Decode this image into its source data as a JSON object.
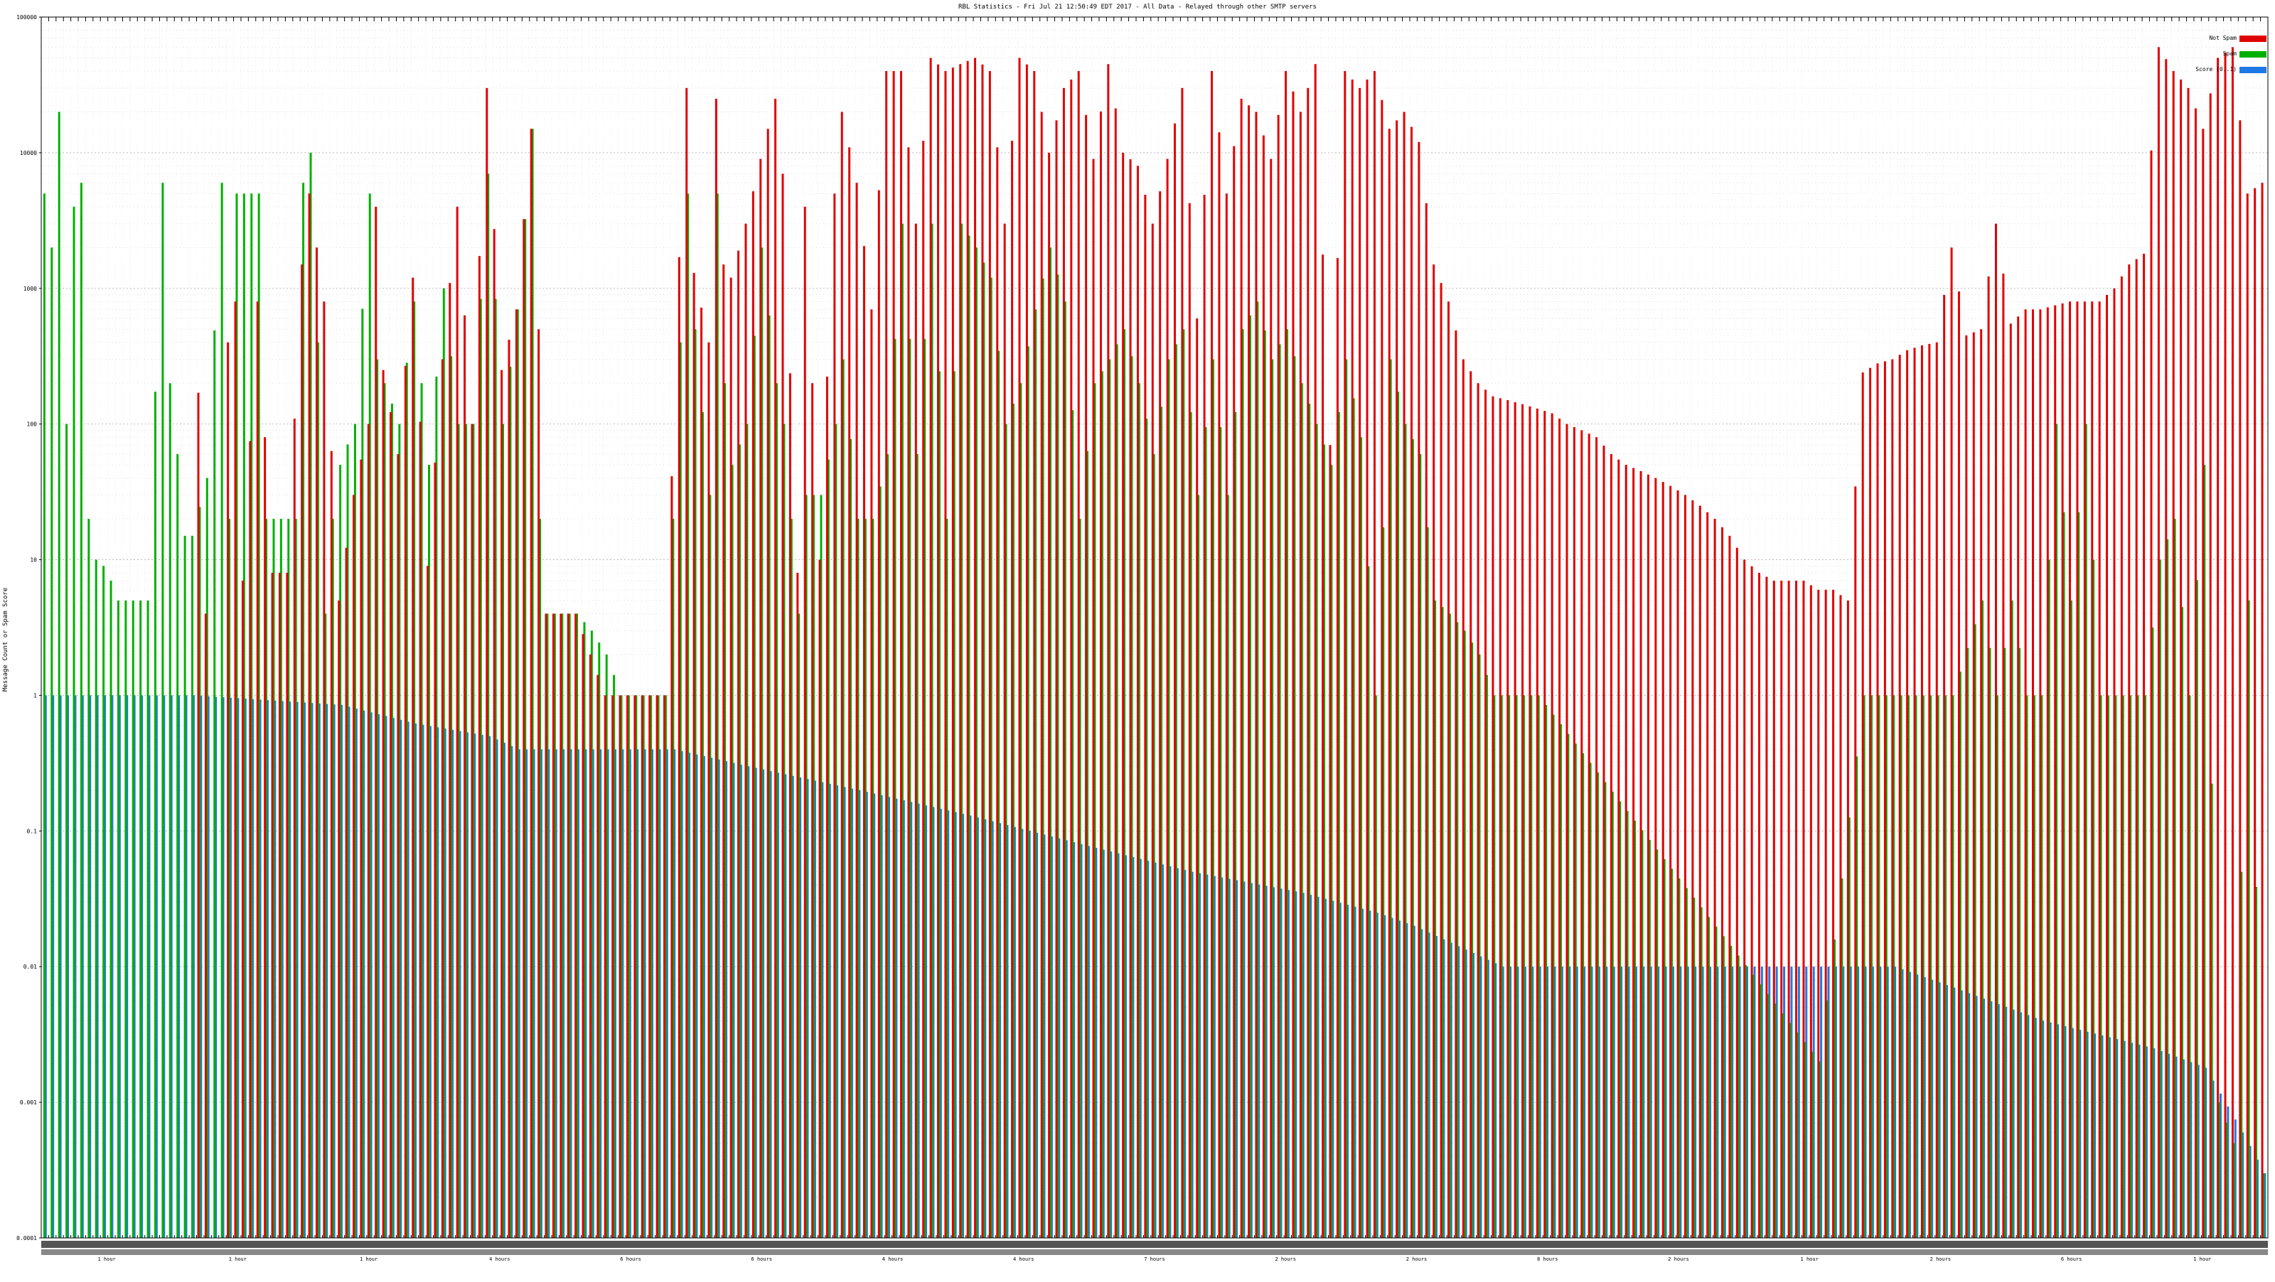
{
  "chart_data": {
    "type": "bar",
    "title": "RBL Statistics - Fri Jul 21 12:50:49 EDT 2017 - All Data - Relayed through other SMTP servers",
    "ylabel": "Message Count or Spam Score",
    "xlabel": "",
    "yscale": "log",
    "ylim": [
      0.0001,
      100000
    ],
    "y_tick_labels": [
      "0.0001",
      "0.001",
      "0.01",
      "0.1",
      "1",
      "10",
      "100",
      "1000",
      "10000",
      "100000"
    ],
    "grid": true,
    "legend_position": "top-right",
    "series": [
      {
        "name": "Not Spam",
        "color": "#e00000"
      },
      {
        "name": "Spam",
        "color": "#00b000"
      },
      {
        "name": "Score (0..1)",
        "color": "#1e78e6"
      }
    ],
    "x_group_labels": [
      "1 hour",
      "1 hour",
      "1 hour",
      "4 hours",
      "6 hours",
      "6 hours",
      "4 hours",
      "4 hours",
      "7 hours",
      "2 hours",
      "2 hours",
      "8 hours",
      "2 hours",
      "1 hour",
      "2 hours",
      "6 hours",
      "1 hour"
    ],
    "category_count": 301,
    "anchors": {
      "score": [
        [
          0,
          1
        ],
        [
          20,
          1
        ],
        [
          40,
          0.85
        ],
        [
          50,
          0.62
        ],
        [
          60,
          0.5
        ],
        [
          64,
          0.4
        ],
        [
          85,
          0.4
        ],
        [
          95,
          0.3
        ],
        [
          110,
          0.2
        ],
        [
          125,
          0.13
        ],
        [
          140,
          0.08
        ],
        [
          155,
          0.05
        ],
        [
          170,
          0.035
        ],
        [
          180,
          0.025
        ],
        [
          185,
          0.02
        ],
        [
          190,
          0.015
        ],
        [
          197,
          0.01
        ],
        [
          250,
          0.01
        ],
        [
          258,
          0.007
        ],
        [
          270,
          0.004
        ],
        [
          285,
          0.0025
        ],
        [
          292,
          0.0018
        ],
        [
          297,
          0.0006
        ],
        [
          300,
          0.0003
        ]
      ],
      "not_spam": [
        [
          0,
          null
        ],
        [
          20,
          null
        ],
        [
          21,
          170
        ],
        [
          22,
          4
        ],
        [
          23,
          null
        ],
        [
          24,
          null
        ],
        [
          25,
          400
        ],
        [
          26,
          800
        ],
        [
          27,
          7
        ],
        [
          29,
          800
        ],
        [
          31,
          8
        ],
        [
          33,
          8
        ],
        [
          35,
          1500
        ],
        [
          36,
          5000
        ],
        [
          38,
          800
        ],
        [
          40,
          5
        ],
        [
          42,
          30
        ],
        [
          44,
          100
        ],
        [
          45,
          4000
        ],
        [
          46,
          250
        ],
        [
          48,
          60
        ],
        [
          50,
          1200
        ],
        [
          52,
          9
        ],
        [
          54,
          300
        ],
        [
          56,
          4000
        ],
        [
          58,
          100
        ],
        [
          60,
          30000
        ],
        [
          62,
          250
        ],
        [
          64,
          700
        ],
        [
          66,
          15000
        ],
        [
          67,
          500
        ],
        [
          68,
          4
        ],
        [
          69,
          4
        ],
        [
          70,
          4
        ],
        [
          72,
          4
        ],
        [
          76,
          1
        ],
        [
          79,
          1
        ],
        [
          82,
          1
        ],
        [
          84,
          1
        ],
        [
          86,
          1700
        ],
        [
          87,
          30000
        ],
        [
          88,
          1300
        ],
        [
          90,
          400
        ],
        [
          91,
          25000
        ],
        [
          92,
          1500
        ],
        [
          93,
          1200
        ],
        [
          95,
          3000
        ],
        [
          97,
          9000
        ],
        [
          99,
          25000
        ],
        [
          100,
          7000
        ],
        [
          102,
          8
        ],
        [
          103,
          4000
        ],
        [
          105,
          10
        ],
        [
          107,
          5000
        ],
        [
          108,
          20000
        ],
        [
          110,
          6000
        ],
        [
          112,
          700
        ],
        [
          114,
          40000
        ],
        [
          116,
          40000
        ],
        [
          118,
          3000
        ],
        [
          120,
          50000
        ],
        [
          122,
          40000
        ],
        [
          124,
          45000
        ],
        [
          126,
          50000
        ],
        [
          128,
          40000
        ],
        [
          130,
          3000
        ],
        [
          132,
          50000
        ],
        [
          134,
          40000
        ],
        [
          136,
          10000
        ],
        [
          138,
          30000
        ],
        [
          140,
          40000
        ],
        [
          142,
          9000
        ],
        [
          144,
          45000
        ],
        [
          146,
          10000
        ],
        [
          148,
          8000
        ],
        [
          150,
          3000
        ],
        [
          152,
          9000
        ],
        [
          154,
          30000
        ],
        [
          156,
          600
        ],
        [
          158,
          40000
        ],
        [
          160,
          5000
        ],
        [
          162,
          25000
        ],
        [
          164,
          20000
        ],
        [
          166,
          9000
        ],
        [
          168,
          40000
        ],
        [
          170,
          20000
        ],
        [
          172,
          45000
        ],
        [
          174,
          70
        ],
        [
          176,
          40000
        ],
        [
          178,
          30000
        ],
        [
          180,
          40000
        ],
        [
          182,
          15000
        ],
        [
          184,
          20000
        ],
        [
          186,
          12000
        ],
        [
          188,
          1500
        ],
        [
          190,
          800
        ],
        [
          192,
          300
        ],
        [
          194,
          200
        ],
        [
          196,
          160
        ],
        [
          198,
          150
        ],
        [
          200,
          140
        ],
        [
          202,
          130
        ],
        [
          204,
          120
        ],
        [
          206,
          100
        ],
        [
          208,
          90
        ],
        [
          210,
          80
        ],
        [
          212,
          60
        ],
        [
          214,
          50
        ],
        [
          216,
          45
        ],
        [
          218,
          40
        ],
        [
          220,
          35
        ],
        [
          222,
          30
        ],
        [
          224,
          25
        ],
        [
          226,
          20
        ],
        [
          228,
          15
        ],
        [
          230,
          10
        ],
        [
          232,
          8
        ],
        [
          234,
          7
        ],
        [
          236,
          7
        ],
        [
          238,
          7
        ],
        [
          240,
          6
        ],
        [
          242,
          6
        ],
        [
          244,
          5
        ],
        [
          246,
          240
        ],
        [
          248,
          280
        ],
        [
          250,
          300
        ],
        [
          252,
          350
        ],
        [
          254,
          380
        ],
        [
          256,
          400
        ],
        [
          258,
          2000
        ],
        [
          260,
          450
        ],
        [
          262,
          500
        ],
        [
          264,
          3000
        ],
        [
          266,
          550
        ],
        [
          268,
          700
        ],
        [
          270,
          700
        ],
        [
          272,
          750
        ],
        [
          274,
          800
        ],
        [
          276,
          800
        ],
        [
          278,
          800
        ],
        [
          280,
          1000
        ],
        [
          282,
          1500
        ],
        [
          284,
          1800
        ],
        [
          286,
          60000
        ],
        [
          288,
          40000
        ],
        [
          290,
          30000
        ],
        [
          292,
          15000
        ],
        [
          294,
          50000
        ],
        [
          296,
          60000
        ],
        [
          298,
          5000
        ],
        [
          300,
          6000
        ]
      ],
      "spam": [
        [
          0,
          5000
        ],
        [
          1,
          2000
        ],
        [
          2,
          20000
        ],
        [
          3,
          100
        ],
        [
          4,
          4000
        ],
        [
          5,
          6000
        ],
        [
          6,
          20
        ],
        [
          7,
          10
        ],
        [
          8,
          9
        ],
        [
          9,
          7
        ],
        [
          10,
          5
        ],
        [
          12,
          5
        ],
        [
          14,
          5
        ],
        [
          16,
          6000
        ],
        [
          17,
          200
        ],
        [
          18,
          60
        ],
        [
          19,
          15
        ],
        [
          20,
          15
        ],
        [
          22,
          40
        ],
        [
          24,
          6000
        ],
        [
          25,
          20
        ],
        [
          26,
          5000
        ],
        [
          27,
          5000
        ],
        [
          28,
          5000
        ],
        [
          29,
          5000
        ],
        [
          30,
          20
        ],
        [
          31,
          20
        ],
        [
          32,
          20
        ],
        [
          34,
          20
        ],
        [
          35,
          6000
        ],
        [
          36,
          10000
        ],
        [
          37,
          400
        ],
        [
          38,
          4
        ],
        [
          39,
          20
        ],
        [
          40,
          50
        ],
        [
          42,
          100
        ],
        [
          44,
          5000
        ],
        [
          45,
          300
        ],
        [
          46,
          200
        ],
        [
          48,
          100
        ],
        [
          50,
          800
        ],
        [
          52,
          50
        ],
        [
          54,
          1000
        ],
        [
          56,
          100
        ],
        [
          58,
          100
        ],
        [
          60,
          7000
        ],
        [
          62,
          100
        ],
        [
          64,
          700
        ],
        [
          66,
          15000
        ],
        [
          67,
          20
        ],
        [
          68,
          4
        ],
        [
          70,
          4
        ],
        [
          72,
          4
        ],
        [
          74,
          3
        ],
        [
          76,
          2
        ],
        [
          78,
          1
        ],
        [
          80,
          1
        ],
        [
          82,
          1
        ],
        [
          84,
          1
        ],
        [
          86,
          400
        ],
        [
          87,
          5000
        ],
        [
          88,
          500
        ],
        [
          90,
          30
        ],
        [
          91,
          5000
        ],
        [
          92,
          200
        ],
        [
          93,
          50
        ],
        [
          95,
          100
        ],
        [
          97,
          2000
        ],
        [
          99,
          200
        ],
        [
          100,
          100
        ],
        [
          102,
          4
        ],
        [
          103,
          30
        ],
        [
          105,
          30
        ],
        [
          107,
          100
        ],
        [
          108,
          300
        ],
        [
          110,
          20
        ],
        [
          112,
          20
        ],
        [
          114,
          60
        ],
        [
          116,
          3000
        ],
        [
          118,
          60
        ],
        [
          120,
          3000
        ],
        [
          122,
          20
        ],
        [
          124,
          3000
        ],
        [
          126,
          2000
        ],
        [
          128,
          1200
        ],
        [
          130,
          100
        ],
        [
          132,
          200
        ],
        [
          134,
          700
        ],
        [
          136,
          2000
        ],
        [
          138,
          800
        ],
        [
          140,
          20
        ],
        [
          142,
          200
        ],
        [
          144,
          300
        ],
        [
          146,
          500
        ],
        [
          148,
          200
        ],
        [
          150,
          60
        ],
        [
          152,
          300
        ],
        [
          154,
          500
        ],
        [
          156,
          30
        ],
        [
          158,
          300
        ],
        [
          160,
          30
        ],
        [
          162,
          500
        ],
        [
          164,
          800
        ],
        [
          166,
          300
        ],
        [
          168,
          500
        ],
        [
          170,
          200
        ],
        [
          172,
          100
        ],
        [
          174,
          50
        ],
        [
          176,
          300
        ],
        [
          178,
          80
        ],
        [
          180,
          1
        ],
        [
          182,
          300
        ],
        [
          184,
          100
        ],
        [
          186,
          60
        ],
        [
          188,
          5
        ],
        [
          190,
          4
        ],
        [
          192,
          3
        ],
        [
          194,
          2
        ],
        [
          196,
          1
        ],
        [
          198,
          1
        ],
        [
          200,
          1
        ],
        [
          202,
          1
        ],
        [
          240,
          0.002
        ],
        [
          246,
          1
        ],
        [
          250,
          1
        ],
        [
          255,
          1
        ],
        [
          258,
          1
        ],
        [
          262,
          5
        ],
        [
          264,
          1
        ],
        [
          266,
          5
        ],
        [
          268,
          1
        ],
        [
          270,
          1
        ],
        [
          272,
          100
        ],
        [
          274,
          5
        ],
        [
          276,
          100
        ],
        [
          278,
          1
        ],
        [
          280,
          1
        ],
        [
          282,
          1
        ],
        [
          284,
          1
        ],
        [
          286,
          10
        ],
        [
          288,
          20
        ],
        [
          290,
          1
        ],
        [
          292,
          50
        ],
        [
          294,
          0.001
        ],
        [
          296,
          0.0005
        ],
        [
          298,
          5
        ],
        [
          300,
          0.0003
        ]
      ]
    }
  }
}
